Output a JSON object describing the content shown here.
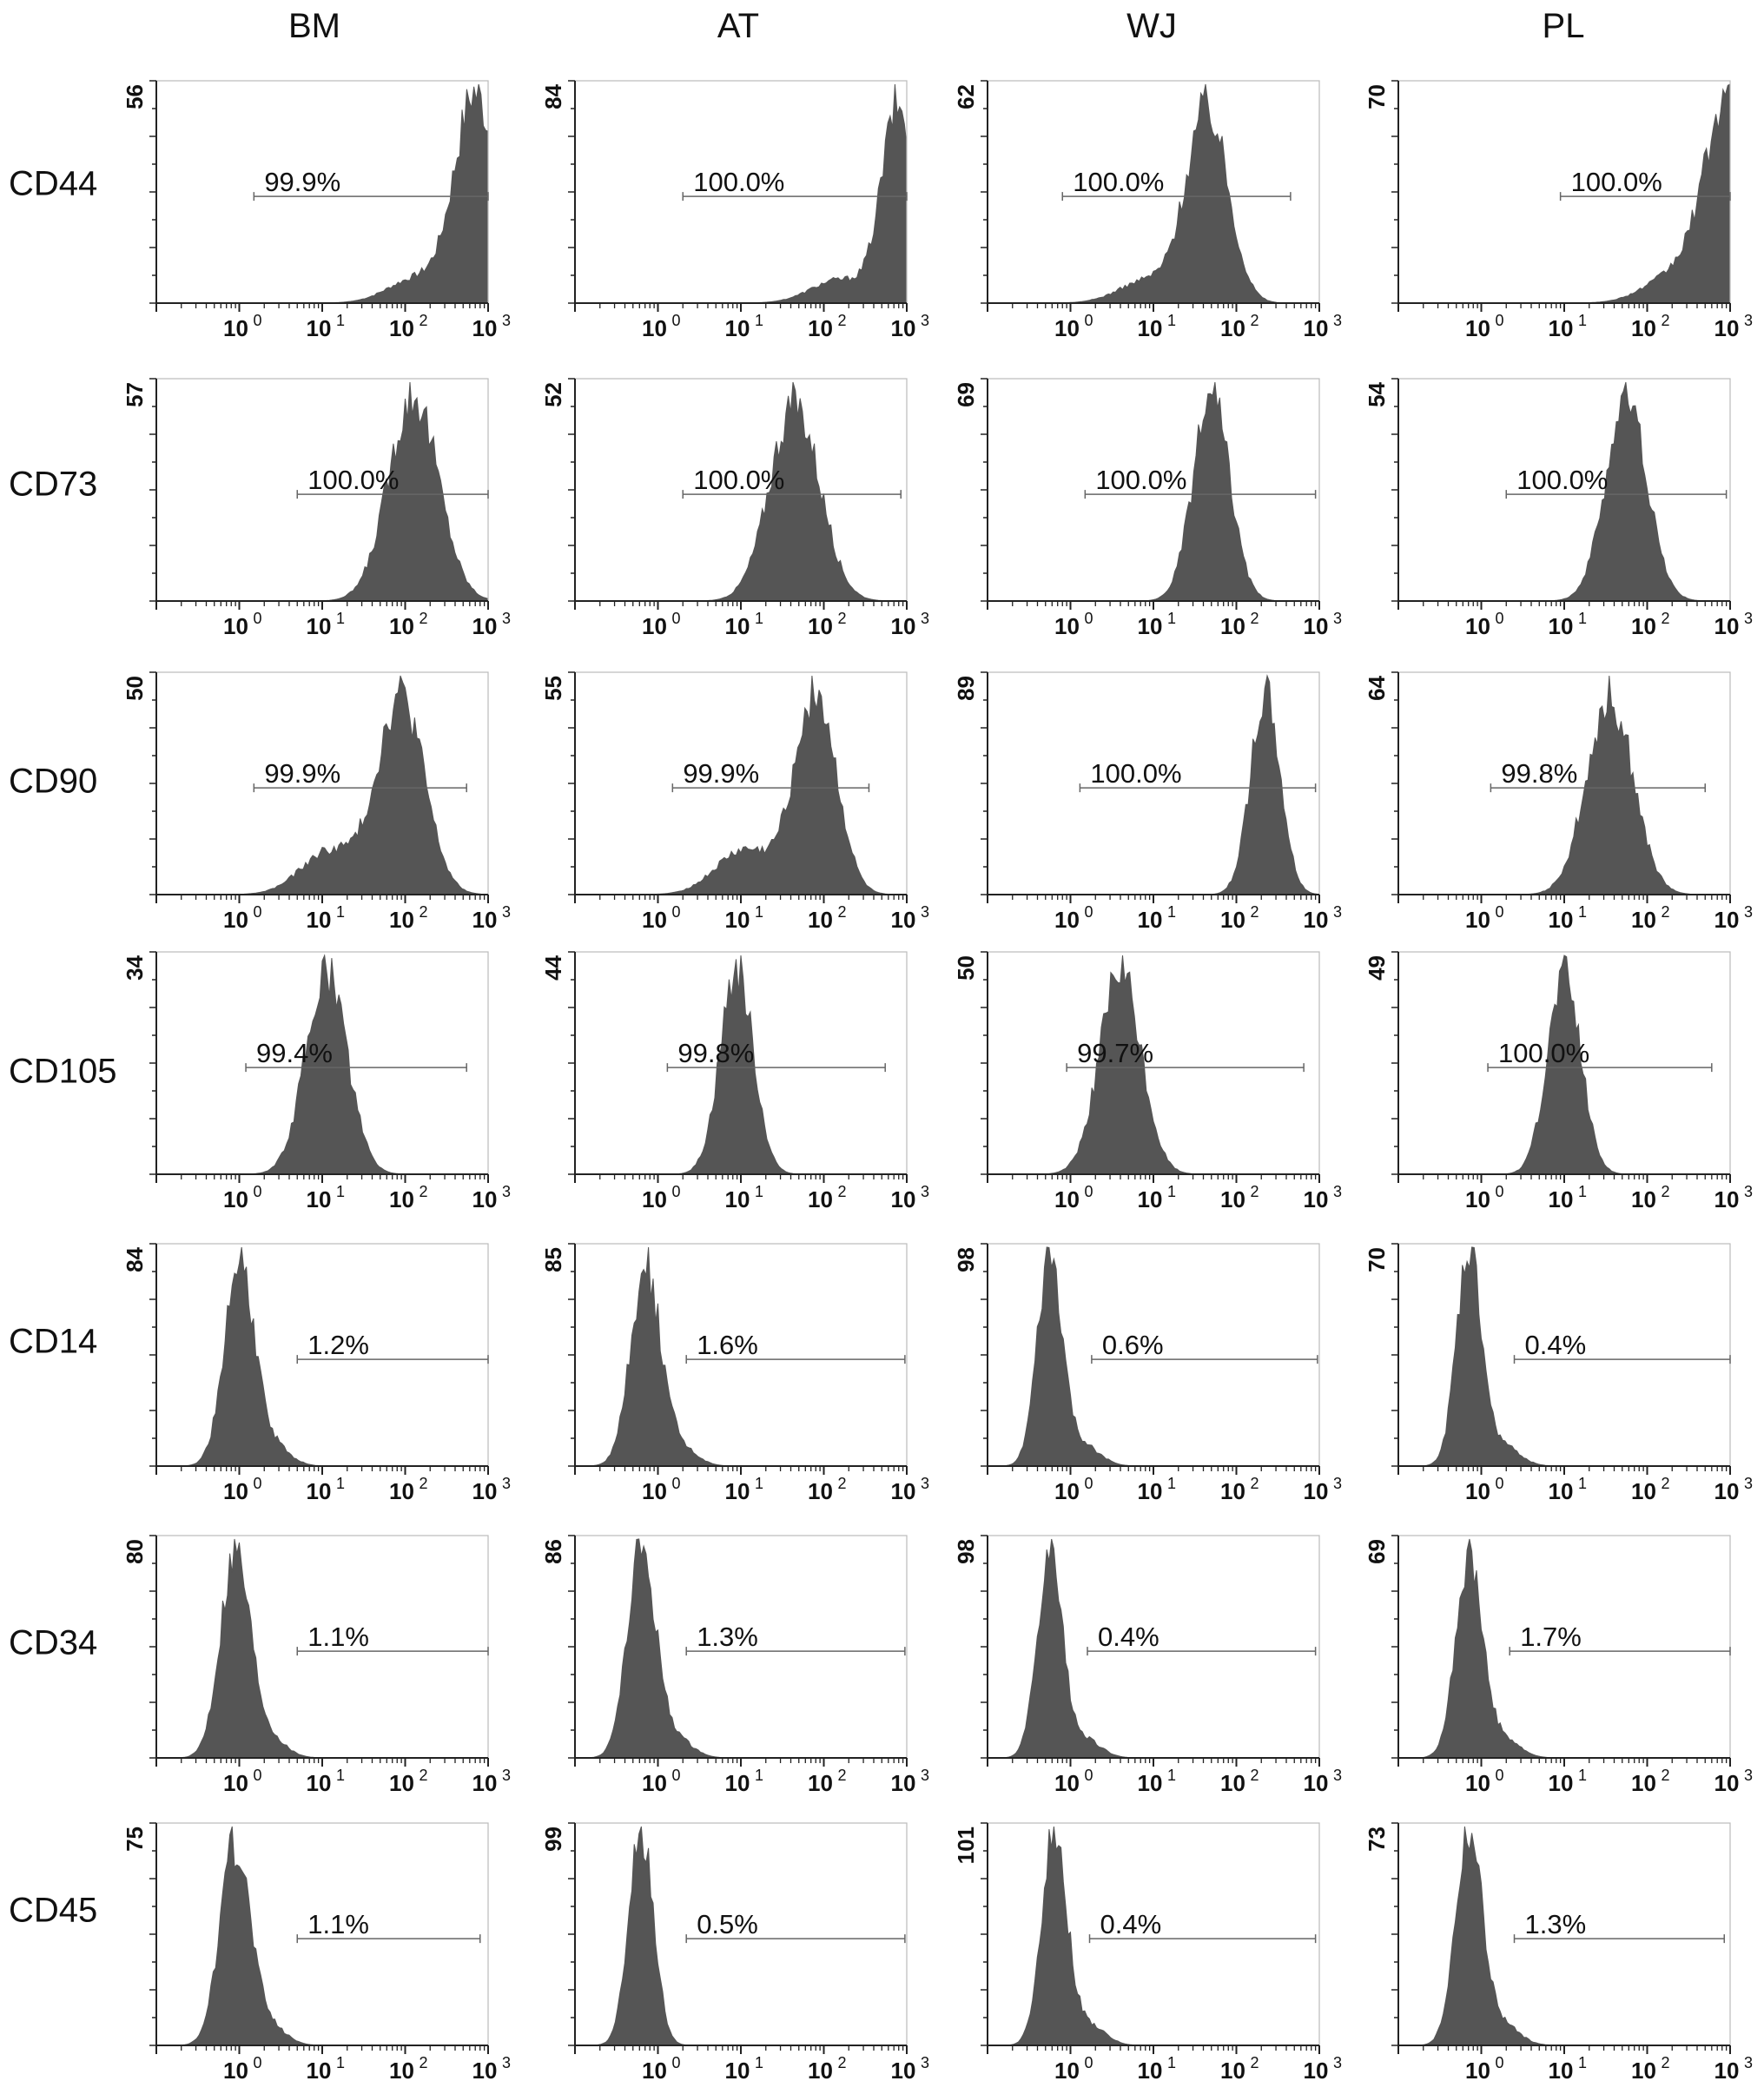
{
  "columns": [
    "BM",
    "AT",
    "WJ",
    "PL"
  ],
  "rows": [
    "CD44",
    "CD73",
    "CD90",
    "CD105",
    "CD14",
    "CD34",
    "CD45"
  ],
  "colors": {
    "histogram_fill": "#555555",
    "axis": "#222222",
    "gate_line": "#666666"
  },
  "chart_data": {
    "type": "histogram",
    "layout": "small-multiples grid: rows = markers, columns = cell sources",
    "x_scale": "log",
    "xlim": [
      0.1,
      1000
    ],
    "x_tick_values": [
      1,
      10,
      100,
      1000
    ],
    "x_tick_labels": [
      "10",
      "10",
      "10",
      "10"
    ],
    "x_tick_exponents": [
      "0",
      "1",
      "2",
      "3"
    ],
    "panels": [
      {
        "row": "CD44",
        "col": "BM",
        "ymax": "56",
        "ymax_value": 56,
        "gate_label": "99.9%",
        "gate_from": 1.5,
        "gate_to": 1000,
        "peak_log": 2.85,
        "spread_log": 0.25,
        "skew": "left-tail-low"
      },
      {
        "row": "CD44",
        "col": "AT",
        "ymax": "84",
        "ymax_value": 84,
        "gate_label": "100.0%",
        "gate_from": 2,
        "gate_to": 1000,
        "peak_log": 2.9,
        "spread_log": 0.2,
        "skew": "left-tail-low"
      },
      {
        "row": "CD44",
        "col": "WJ",
        "ymax": "62",
        "ymax_value": 62,
        "gate_label": "100.0%",
        "gate_from": 0.8,
        "gate_to": 450,
        "peak_log": 1.65,
        "spread_log": 0.25,
        "skew": "left-tail-low"
      },
      {
        "row": "CD44",
        "col": "PL",
        "ymax": "70",
        "ymax_value": 70,
        "gate_label": "100.0%",
        "gate_from": 9,
        "gate_to": 1000,
        "peak_log": 3.0,
        "spread_log": 0.3,
        "skew": "left-tail-low"
      },
      {
        "row": "CD73",
        "col": "BM",
        "ymax": "57",
        "ymax_value": 57,
        "gate_label": "100.0%",
        "gate_from": 5,
        "gate_to": 1000,
        "peak_log": 2.1,
        "spread_log": 0.3,
        "skew": "none"
      },
      {
        "row": "CD73",
        "col": "AT",
        "ymax": "52",
        "ymax_value": 52,
        "gate_label": "100.0%",
        "gate_from": 2,
        "gate_to": 850,
        "peak_log": 1.65,
        "spread_log": 0.3,
        "skew": "none"
      },
      {
        "row": "CD73",
        "col": "WJ",
        "ymax": "69",
        "ymax_value": 69,
        "gate_label": "100.0%",
        "gate_from": 1.5,
        "gate_to": 900,
        "peak_log": 1.7,
        "spread_log": 0.22,
        "skew": "none"
      },
      {
        "row": "CD73",
        "col": "PL",
        "ymax": "54",
        "ymax_value": 54,
        "gate_label": "100.0%",
        "gate_from": 2,
        "gate_to": 900,
        "peak_log": 1.75,
        "spread_log": 0.25,
        "skew": "none"
      },
      {
        "row": "CD90",
        "col": "BM",
        "ymax": "50",
        "ymax_value": 50,
        "gate_label": "99.9%",
        "gate_from": 1.5,
        "gate_to": 550,
        "peak_log": 1.95,
        "spread_log": 0.28,
        "skew": "left-tail-high"
      },
      {
        "row": "CD90",
        "col": "AT",
        "ymax": "55",
        "ymax_value": 55,
        "gate_label": "99.9%",
        "gate_from": 1.5,
        "gate_to": 350,
        "peak_log": 1.9,
        "spread_log": 0.25,
        "skew": "left-tail-high"
      },
      {
        "row": "CD90",
        "col": "WJ",
        "ymax": "89",
        "ymax_value": 89,
        "gate_label": "100.0%",
        "gate_from": 1.3,
        "gate_to": 900,
        "peak_log": 2.35,
        "spread_log": 0.18,
        "skew": "none"
      },
      {
        "row": "CD90",
        "col": "PL",
        "ymax": "64",
        "ymax_value": 64,
        "gate_label": "99.8%",
        "gate_from": 1.3,
        "gate_to": 500,
        "peak_log": 1.55,
        "spread_log": 0.28,
        "skew": "none"
      },
      {
        "row": "CD105",
        "col": "BM",
        "ymax": "34",
        "ymax_value": 34,
        "gate_label": "99.4%",
        "gate_from": 1.2,
        "gate_to": 550,
        "peak_log": 1.05,
        "spread_log": 0.25,
        "skew": "none"
      },
      {
        "row": "CD105",
        "col": "AT",
        "ymax": "44",
        "ymax_value": 44,
        "gate_label": "99.8%",
        "gate_from": 1.3,
        "gate_to": 550,
        "peak_log": 0.95,
        "spread_log": 0.2,
        "skew": "none"
      },
      {
        "row": "CD105",
        "col": "WJ",
        "ymax": "50",
        "ymax_value": 50,
        "gate_label": "99.7%",
        "gate_from": 0.9,
        "gate_to": 650,
        "peak_log": 0.6,
        "spread_log": 0.25,
        "skew": "none"
      },
      {
        "row": "CD105",
        "col": "PL",
        "ymax": "49",
        "ymax_value": 49,
        "gate_label": "100.0%",
        "gate_from": 1.2,
        "gate_to": 600,
        "peak_log": 1.0,
        "spread_log": 0.2,
        "skew": "none"
      },
      {
        "row": "CD14",
        "col": "BM",
        "ymax": "84",
        "ymax_value": 84,
        "gate_label": "1.2%",
        "gate_from": 5,
        "gate_to": 1000,
        "peak_log": 0.0,
        "spread_log": 0.18,
        "skew": "right-tail"
      },
      {
        "row": "CD14",
        "col": "AT",
        "ymax": "85",
        "ymax_value": 85,
        "gate_label": "1.6%",
        "gate_from": 2.2,
        "gate_to": 950,
        "peak_log": -0.15,
        "spread_log": 0.18,
        "skew": "right-tail"
      },
      {
        "row": "CD14",
        "col": "WJ",
        "ymax": "98",
        "ymax_value": 98,
        "gate_label": "0.6%",
        "gate_from": 1.8,
        "gate_to": 950,
        "peak_log": -0.25,
        "spread_log": 0.15,
        "skew": "right-tail"
      },
      {
        "row": "CD14",
        "col": "PL",
        "ymax": "70",
        "ymax_value": 70,
        "gate_label": "0.4%",
        "gate_from": 2.5,
        "gate_to": 1000,
        "peak_log": -0.15,
        "spread_log": 0.15,
        "skew": "right-tail"
      },
      {
        "row": "CD34",
        "col": "BM",
        "ymax": "80",
        "ymax_value": 80,
        "gate_label": "1.1%",
        "gate_from": 5,
        "gate_to": 1000,
        "peak_log": -0.05,
        "spread_log": 0.18,
        "skew": "right-tail"
      },
      {
        "row": "CD34",
        "col": "AT",
        "ymax": "86",
        "ymax_value": 86,
        "gate_label": "1.3%",
        "gate_from": 2.2,
        "gate_to": 950,
        "peak_log": -0.2,
        "spread_log": 0.17,
        "skew": "right-tail"
      },
      {
        "row": "CD34",
        "col": "WJ",
        "ymax": "98",
        "ymax_value": 98,
        "gate_label": "0.4%",
        "gate_from": 1.6,
        "gate_to": 900,
        "peak_log": -0.25,
        "spread_log": 0.15,
        "skew": "right-tail"
      },
      {
        "row": "CD34",
        "col": "PL",
        "ymax": "69",
        "ymax_value": 69,
        "gate_label": "1.7%",
        "gate_from": 2.2,
        "gate_to": 1000,
        "peak_log": -0.15,
        "spread_log": 0.16,
        "skew": "right-tail"
      },
      {
        "row": "CD45",
        "col": "BM",
        "ymax": "75",
        "ymax_value": 75,
        "gate_label": "1.1%",
        "gate_from": 5,
        "gate_to": 800,
        "peak_log": -0.05,
        "spread_log": 0.18,
        "skew": "right-tail"
      },
      {
        "row": "CD45",
        "col": "AT",
        "ymax": "99",
        "ymax_value": 99,
        "gate_label": "0.5%",
        "gate_from": 2.2,
        "gate_to": 950,
        "peak_log": -0.2,
        "spread_log": 0.15,
        "skew": "none"
      },
      {
        "row": "CD45",
        "col": "WJ",
        "ymax": "101",
        "ymax_value": 101,
        "gate_label": "0.4%",
        "gate_from": 1.7,
        "gate_to": 900,
        "peak_log": -0.2,
        "spread_log": 0.15,
        "skew": "right-tail"
      },
      {
        "row": "CD45",
        "col": "PL",
        "ymax": "73",
        "ymax_value": 73,
        "gate_label": "1.3%",
        "gate_from": 2.5,
        "gate_to": 850,
        "peak_log": -0.15,
        "spread_log": 0.16,
        "skew": "right-tail"
      }
    ]
  }
}
